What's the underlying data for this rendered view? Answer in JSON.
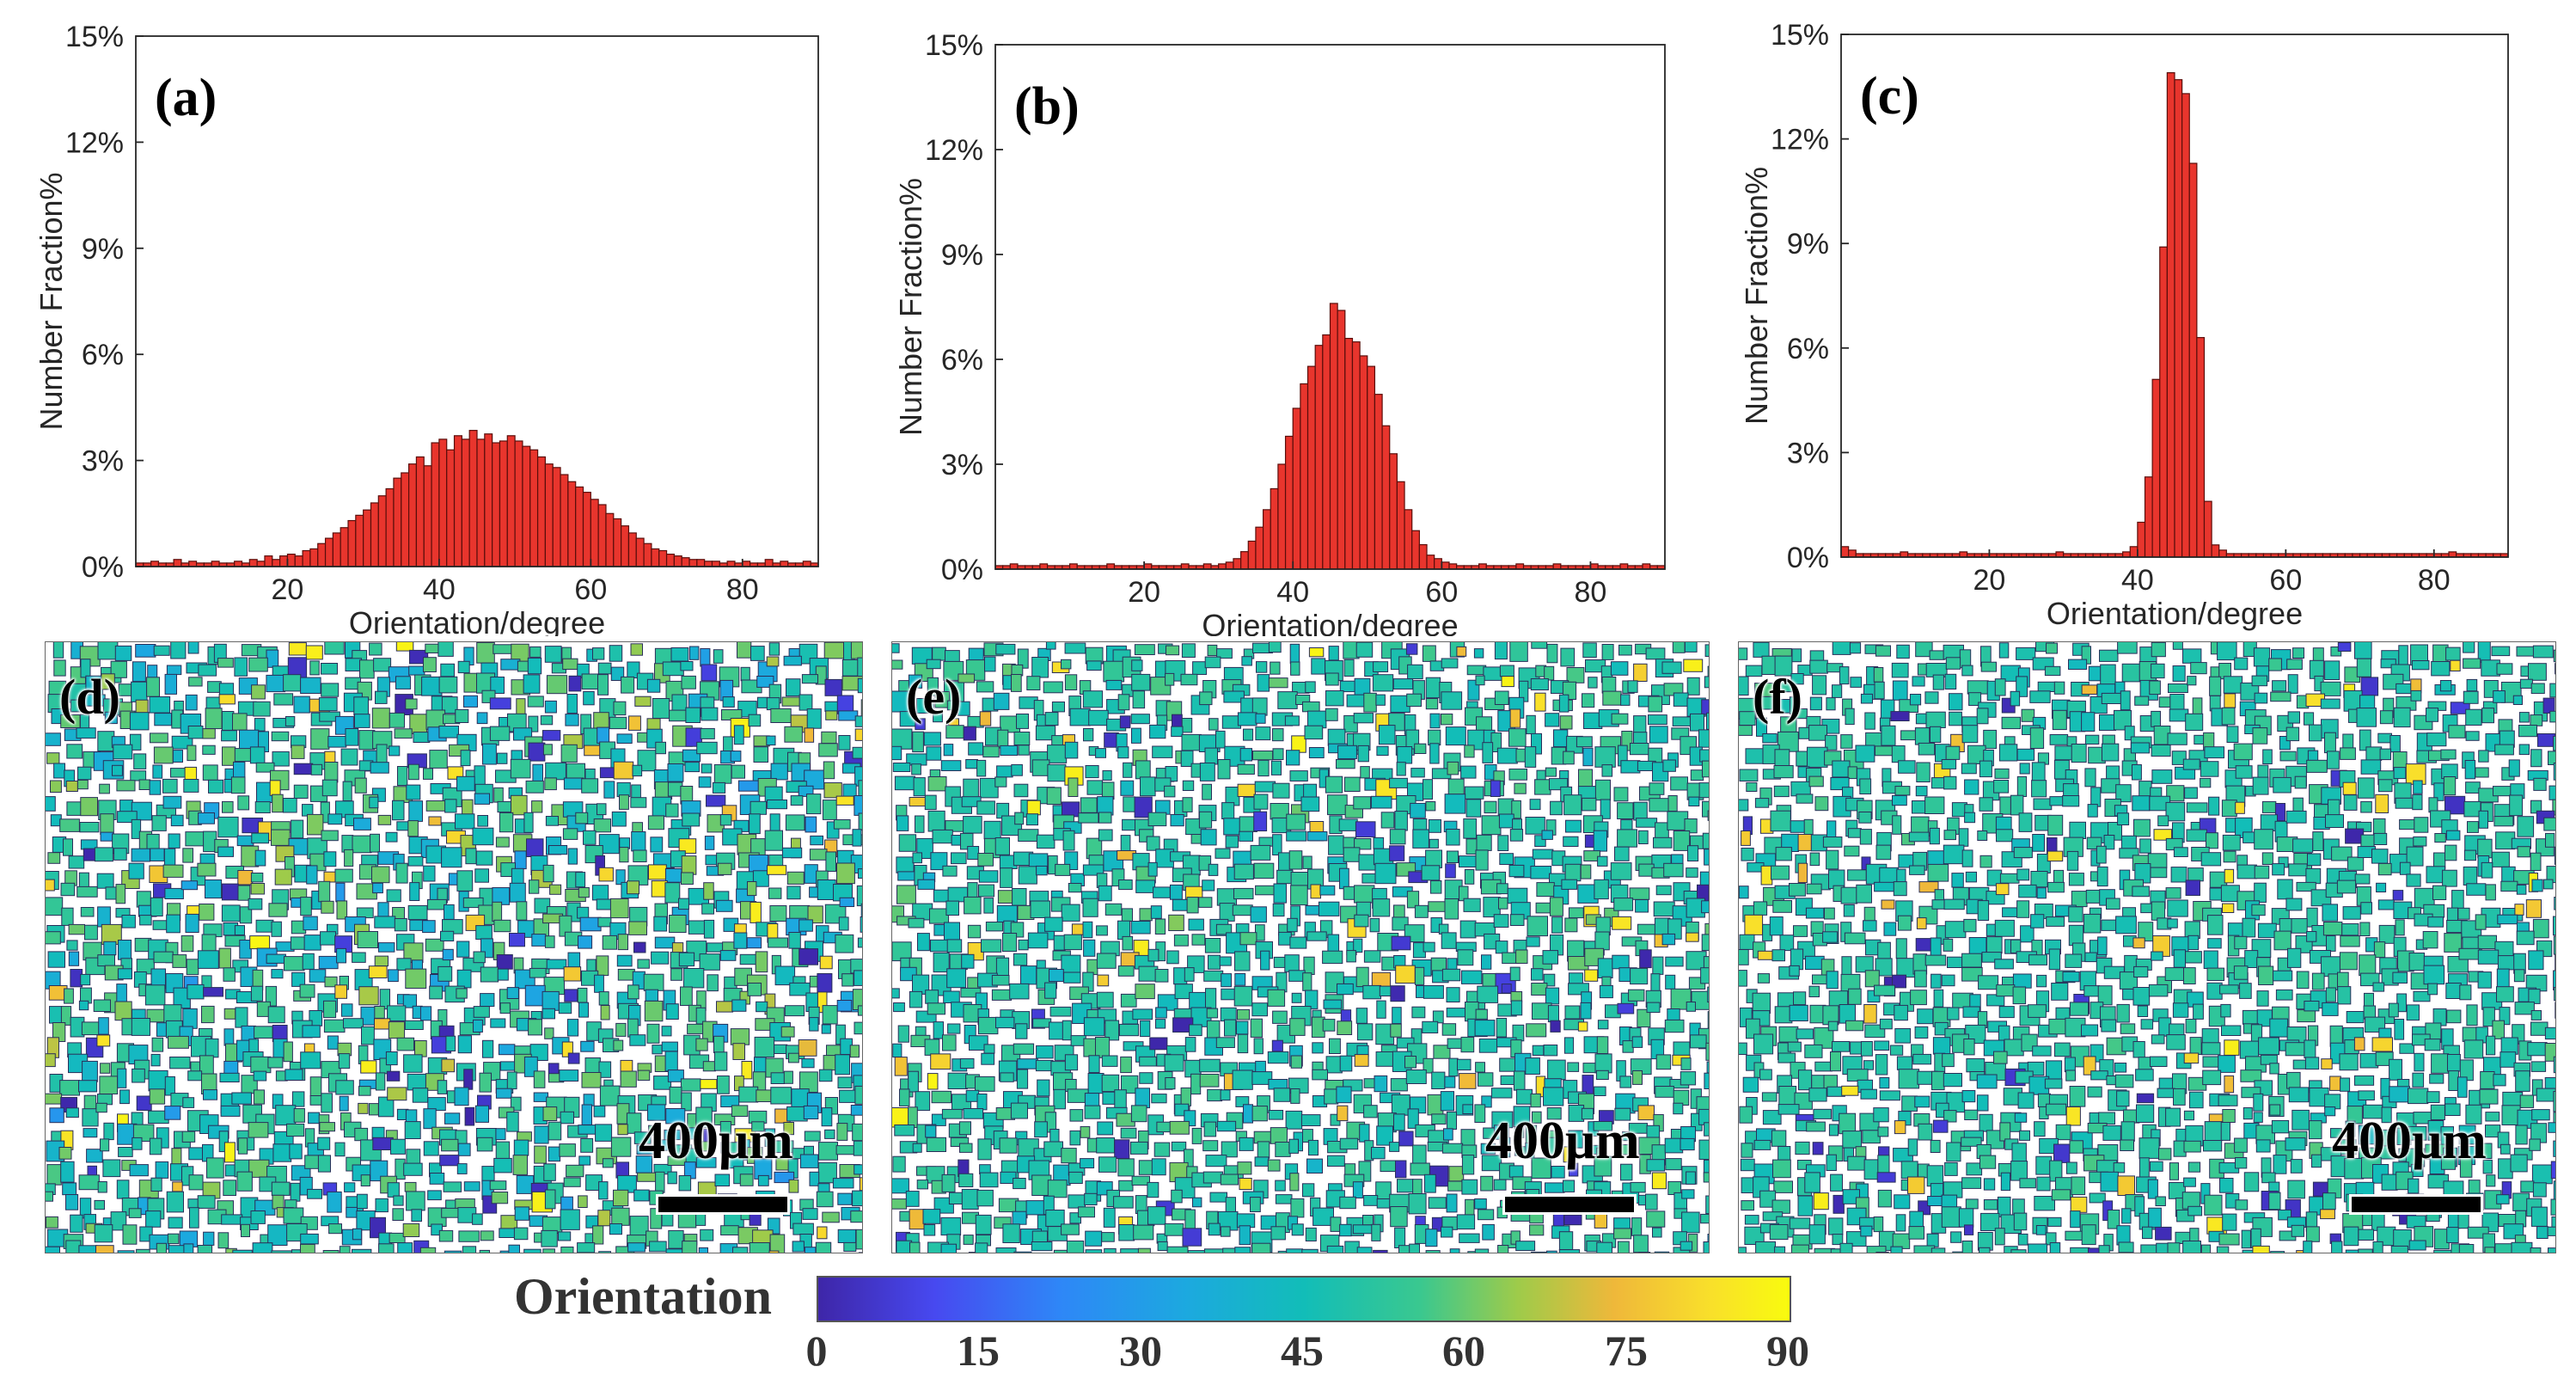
{
  "chart_data": [
    {
      "type": "bar",
      "panel_label": "(a)",
      "xlabel": "Orientation/degree",
      "ylabel": "Number Fraction%",
      "xlim": [
        0,
        90
      ],
      "ylim": [
        0,
        15
      ],
      "x_ticks": [
        20,
        40,
        60,
        80
      ],
      "y_ticks": [
        "0%",
        "3%",
        "6%",
        "9%",
        "12%",
        "15%"
      ],
      "bar_color": "#e8352d",
      "bin_width_deg": 1,
      "x": [
        1,
        2,
        3,
        4,
        5,
        6,
        7,
        8,
        9,
        10,
        11,
        12,
        13,
        14,
        15,
        16,
        17,
        18,
        19,
        20,
        21,
        22,
        23,
        24,
        25,
        26,
        27,
        28,
        29,
        30,
        31,
        32,
        33,
        34,
        35,
        36,
        37,
        38,
        39,
        40,
        41,
        42,
        43,
        44,
        45,
        46,
        47,
        48,
        49,
        50,
        51,
        52,
        53,
        54,
        55,
        56,
        57,
        58,
        59,
        60,
        61,
        62,
        63,
        64,
        65,
        66,
        67,
        68,
        69,
        70,
        71,
        72,
        73,
        74,
        75,
        76,
        77,
        78,
        79,
        80,
        81,
        82,
        83,
        84,
        85,
        86,
        87,
        88,
        89,
        90
      ],
      "values": [
        0.1,
        0.1,
        0.15,
        0.1,
        0.1,
        0.2,
        0.1,
        0.15,
        0.1,
        0.1,
        0.15,
        0.1,
        0.1,
        0.15,
        0.1,
        0.2,
        0.15,
        0.3,
        0.2,
        0.3,
        0.35,
        0.3,
        0.45,
        0.5,
        0.65,
        0.8,
        0.95,
        1.1,
        1.3,
        1.45,
        1.6,
        1.8,
        2.0,
        2.2,
        2.5,
        2.65,
        2.9,
        3.1,
        2.85,
        3.5,
        3.6,
        3.3,
        3.7,
        3.6,
        3.85,
        3.6,
        3.75,
        3.5,
        3.55,
        3.7,
        3.55,
        3.4,
        3.3,
        3.1,
        2.9,
        2.8,
        2.6,
        2.4,
        2.25,
        2.1,
        1.9,
        1.75,
        1.5,
        1.35,
        1.15,
        0.95,
        0.8,
        0.65,
        0.5,
        0.45,
        0.35,
        0.3,
        0.25,
        0.2,
        0.2,
        0.15,
        0.15,
        0.1,
        0.15,
        0.1,
        0.15,
        0.1,
        0.1,
        0.2,
        0.1,
        0.15,
        0.1,
        0.1,
        0.15,
        0.1
      ]
    },
    {
      "type": "bar",
      "panel_label": "(b)",
      "xlabel": "Orientation/degree",
      "ylabel": "Number Fraction%",
      "xlim": [
        0,
        90
      ],
      "ylim": [
        0,
        15
      ],
      "x_ticks": [
        20,
        40,
        60,
        80
      ],
      "y_ticks": [
        "0%",
        "3%",
        "6%",
        "9%",
        "12%",
        "15%"
      ],
      "bar_color": "#e8352d",
      "bin_width_deg": 1,
      "x": [
        1,
        2,
        3,
        4,
        5,
        6,
        7,
        8,
        9,
        10,
        11,
        12,
        13,
        14,
        15,
        16,
        17,
        18,
        19,
        20,
        21,
        22,
        23,
        24,
        25,
        26,
        27,
        28,
        29,
        30,
        31,
        32,
        33,
        34,
        35,
        36,
        37,
        38,
        39,
        40,
        41,
        42,
        43,
        44,
        45,
        46,
        47,
        48,
        49,
        50,
        51,
        52,
        53,
        54,
        55,
        56,
        57,
        58,
        59,
        60,
        61,
        62,
        63,
        64,
        65,
        66,
        67,
        68,
        69,
        70,
        71,
        72,
        73,
        74,
        75,
        76,
        77,
        78,
        79,
        80,
        81,
        82,
        83,
        84,
        85,
        86,
        87,
        88,
        89,
        90
      ],
      "values": [
        0.1,
        0.1,
        0.15,
        0.1,
        0.1,
        0.1,
        0.15,
        0.1,
        0.1,
        0.1,
        0.15,
        0.1,
        0.1,
        0.1,
        0.1,
        0.15,
        0.1,
        0.1,
        0.1,
        0.1,
        0.15,
        0.1,
        0.1,
        0.1,
        0.1,
        0.15,
        0.1,
        0.1,
        0.15,
        0.1,
        0.15,
        0.2,
        0.3,
        0.5,
        0.8,
        1.2,
        1.7,
        2.3,
        3.0,
        3.8,
        4.6,
        5.3,
        5.8,
        6.4,
        6.7,
        7.6,
        7.4,
        6.6,
        6.5,
        6.1,
        5.8,
        5.0,
        4.1,
        3.3,
        2.5,
        1.7,
        1.1,
        0.7,
        0.4,
        0.3,
        0.2,
        0.15,
        0.1,
        0.1,
        0.1,
        0.15,
        0.1,
        0.1,
        0.1,
        0.1,
        0.15,
        0.1,
        0.1,
        0.1,
        0.1,
        0.15,
        0.1,
        0.1,
        0.1,
        0.1,
        0.15,
        0.1,
        0.1,
        0.1,
        0.15,
        0.1,
        0.1,
        0.15,
        0.1,
        0.1
      ]
    },
    {
      "type": "bar",
      "panel_label": "(c)",
      "xlabel": "Orientation/degree",
      "ylabel": "Number Fraction%",
      "xlim": [
        0,
        90
      ],
      "ylim": [
        0,
        15
      ],
      "x_ticks": [
        20,
        40,
        60,
        80
      ],
      "y_ticks": [
        "0%",
        "3%",
        "6%",
        "9%",
        "12%",
        "15%"
      ],
      "bar_color": "#e8352d",
      "bin_width_deg": 1,
      "x": [
        1,
        2,
        3,
        4,
        5,
        6,
        7,
        8,
        9,
        10,
        11,
        12,
        13,
        14,
        15,
        16,
        17,
        18,
        19,
        20,
        21,
        22,
        23,
        24,
        25,
        26,
        27,
        28,
        29,
        30,
        31,
        32,
        33,
        34,
        35,
        36,
        37,
        38,
        39,
        40,
        41,
        42,
        43,
        44,
        45,
        46,
        47,
        48,
        49,
        50,
        51,
        52,
        53,
        54,
        55,
        56,
        57,
        58,
        59,
        60,
        61,
        62,
        63,
        64,
        65,
        66,
        67,
        68,
        69,
        70,
        71,
        72,
        73,
        74,
        75,
        76,
        77,
        78,
        79,
        80,
        81,
        82,
        83,
        84,
        85,
        86,
        87,
        88,
        89,
        90
      ],
      "values": [
        0.3,
        0.2,
        0.1,
        0.1,
        0.1,
        0.1,
        0.1,
        0.1,
        0.15,
        0.1,
        0.1,
        0.1,
        0.1,
        0.1,
        0.1,
        0.1,
        0.15,
        0.1,
        0.1,
        0.1,
        0.1,
        0.1,
        0.1,
        0.1,
        0.1,
        0.1,
        0.1,
        0.1,
        0.1,
        0.15,
        0.1,
        0.1,
        0.1,
        0.1,
        0.1,
        0.1,
        0.1,
        0.1,
        0.15,
        0.3,
        1.0,
        2.3,
        5.1,
        8.9,
        13.9,
        13.7,
        13.3,
        11.3,
        6.3,
        1.6,
        0.35,
        0.2,
        0.1,
        0.1,
        0.1,
        0.1,
        0.1,
        0.1,
        0.1,
        0.1,
        0.1,
        0.1,
        0.1,
        0.1,
        0.1,
        0.1,
        0.1,
        0.1,
        0.1,
        0.1,
        0.1,
        0.1,
        0.1,
        0.1,
        0.1,
        0.1,
        0.1,
        0.1,
        0.1,
        0.1,
        0.1,
        0.1,
        0.15,
        0.1,
        0.1,
        0.1,
        0.1,
        0.1,
        0.1,
        0.1
      ]
    }
  ],
  "maps": [
    {
      "panel_label": "(d)",
      "scale_label": "400μm"
    },
    {
      "panel_label": "(e)",
      "scale_label": "400μm"
    },
    {
      "panel_label": "(f)",
      "scale_label": "400μm"
    }
  ],
  "colorbar": {
    "title": "Orientation",
    "ticks": [
      "0",
      "15",
      "30",
      "45",
      "60",
      "75",
      "90"
    ],
    "range": [
      0,
      90
    ],
    "colors": [
      "#3e26a8",
      "#4749f0",
      "#2e87f7",
      "#1ca9df",
      "#12bdb8",
      "#3ac88f",
      "#9ecb4a",
      "#efb83a",
      "#f9e02a",
      "#f9fb0e"
    ]
  }
}
